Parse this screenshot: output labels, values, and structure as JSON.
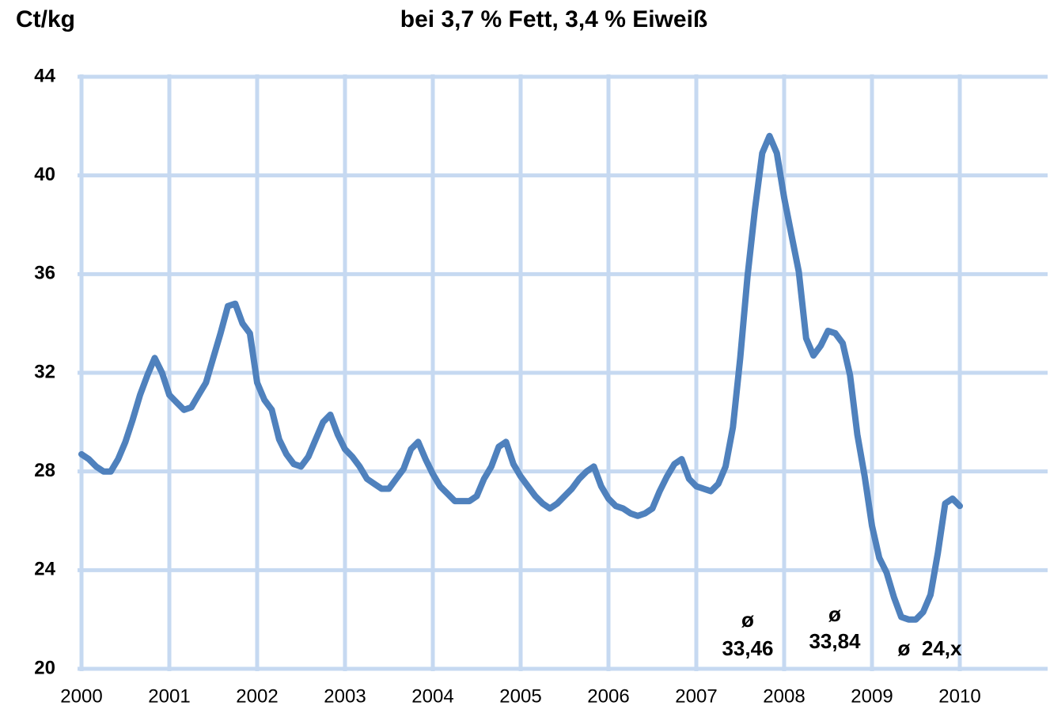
{
  "chart_data": {
    "type": "line",
    "title": "bei 3,7 % Fett, 3,4 % Eiweiß",
    "y_label": "Ct/kg",
    "x": [
      2000,
      2000.083,
      2000.167,
      2000.25,
      2000.333,
      2000.417,
      2000.5,
      2000.583,
      2000.667,
      2000.75,
      2000.833,
      2000.917,
      2001,
      2001.083,
      2001.167,
      2001.25,
      2001.333,
      2001.417,
      2001.5,
      2001.583,
      2001.667,
      2001.75,
      2001.833,
      2001.917,
      2002,
      2002.083,
      2002.167,
      2002.25,
      2002.333,
      2002.417,
      2002.5,
      2002.583,
      2002.667,
      2002.75,
      2002.833,
      2002.917,
      2003,
      2003.083,
      2003.167,
      2003.25,
      2003.333,
      2003.417,
      2003.5,
      2003.583,
      2003.667,
      2003.75,
      2003.833,
      2003.917,
      2004,
      2004.083,
      2004.167,
      2004.25,
      2004.333,
      2004.417,
      2004.5,
      2004.583,
      2004.667,
      2004.75,
      2004.833,
      2004.917,
      2005,
      2005.083,
      2005.167,
      2005.25,
      2005.333,
      2005.417,
      2005.5,
      2005.583,
      2005.667,
      2005.75,
      2005.833,
      2005.917,
      2006,
      2006.083,
      2006.167,
      2006.25,
      2006.333,
      2006.417,
      2006.5,
      2006.583,
      2006.667,
      2006.75,
      2006.833,
      2006.917,
      2007,
      2007.083,
      2007.167,
      2007.25,
      2007.333,
      2007.417,
      2007.5,
      2007.583,
      2007.667,
      2007.75,
      2007.833,
      2007.917,
      2008,
      2008.083,
      2008.167,
      2008.25,
      2008.333,
      2008.417,
      2008.5,
      2008.583,
      2008.667,
      2008.75,
      2008.833,
      2008.917,
      2009,
      2009.083,
      2009.167,
      2009.25,
      2009.333,
      2009.417,
      2009.5,
      2009.583,
      2009.667,
      2009.75,
      2009.833,
      2009.917,
      2010
    ],
    "series": [
      {
        "color": "#4f81bd",
        "values": [
          28.7,
          28.5,
          28.2,
          28.0,
          28.0,
          28.5,
          29.2,
          30.1,
          31.1,
          31.9,
          32.6,
          32.0,
          31.1,
          30.8,
          30.5,
          30.6,
          31.1,
          31.6,
          32.6,
          33.6,
          34.7,
          34.8,
          34.0,
          33.6,
          31.6,
          30.9,
          30.5,
          29.3,
          28.7,
          28.3,
          28.2,
          28.6,
          29.3,
          30.0,
          30.3,
          29.5,
          28.9,
          28.6,
          28.2,
          27.7,
          27.5,
          27.3,
          27.3,
          27.7,
          28.1,
          28.9,
          29.2,
          28.5,
          27.9,
          27.4,
          27.1,
          26.8,
          26.8,
          26.8,
          27.0,
          27.7,
          28.2,
          29.0,
          29.2,
          28.3,
          27.8,
          27.4,
          27.0,
          26.7,
          26.5,
          26.7,
          27.0,
          27.3,
          27.7,
          28.0,
          28.2,
          27.4,
          26.9,
          26.6,
          26.5,
          26.3,
          26.2,
          26.3,
          26.5,
          27.2,
          27.8,
          28.3,
          28.5,
          27.7,
          27.4,
          27.3,
          27.2,
          27.5,
          28.2,
          29.8,
          32.6,
          35.9,
          38.6,
          40.9,
          41.6,
          40.9,
          39.1,
          37.6,
          36.1,
          33.4,
          32.7,
          33.1,
          33.7,
          33.6,
          33.2,
          31.9,
          29.5,
          27.8,
          25.8,
          24.5,
          23.9,
          22.9,
          22.1,
          22.0,
          22.0,
          22.3,
          23.0,
          24.7,
          26.7,
          26.9,
          26.6
        ]
      }
    ],
    "xlim": [
      2000,
      2011
    ],
    "xticks": [
      2000,
      2001,
      2002,
      2003,
      2004,
      2005,
      2006,
      2007,
      2008,
      2009,
      2010
    ],
    "ylim": [
      20,
      44
    ],
    "yticks": [
      20,
      24,
      28,
      32,
      36,
      40,
      44
    ],
    "grid": true,
    "annotations": [
      [
        "ø",
        "33,46"
      ],
      [
        "ø",
        "33,84"
      ],
      [
        "ø  24,x"
      ]
    ]
  }
}
